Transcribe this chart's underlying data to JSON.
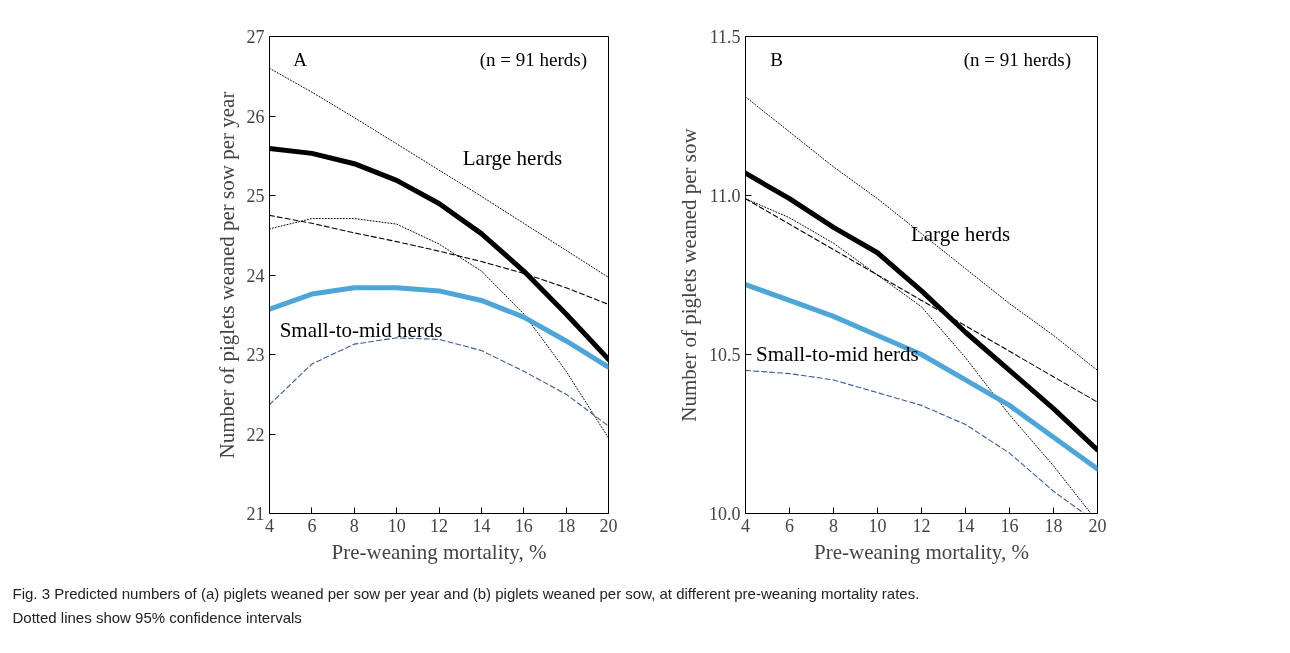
{
  "chart_data": [
    {
      "type": "line",
      "xlabel": "Pre-weaning mortality, %",
      "ylabel": "Number of piglets weaned per sow per year",
      "x": [
        4,
        6,
        8,
        10,
        12,
        14,
        16,
        18,
        20
      ],
      "xlim": [
        4,
        20
      ],
      "ylim": [
        21,
        27
      ],
      "xticks": [
        4,
        6,
        8,
        10,
        12,
        14,
        16,
        18,
        20
      ],
      "yticks": [
        21,
        22,
        23,
        24,
        25,
        26,
        27
      ],
      "annotations": [
        "A",
        "(n = 91 herds)"
      ],
      "series": [
        {
          "name": "Large herds",
          "color": "#000000",
          "line_style": "solid",
          "values": [
            25.59,
            25.53,
            25.4,
            25.19,
            24.9,
            24.52,
            24.05,
            23.51,
            22.94
          ]
        },
        {
          "color": "#000000",
          "line_style": "dotted",
          "values": [
            26.6,
            26.3,
            25.98,
            25.65,
            25.32,
            24.99,
            24.65,
            24.31,
            23.97
          ]
        },
        {
          "color": "#000000",
          "line_style": "dotted",
          "values": [
            24.58,
            24.71,
            24.71,
            24.64,
            24.39,
            24.05,
            23.51,
            22.79,
            21.95
          ]
        },
        {
          "name": "Small-to-mid herds",
          "color": "#4ea6d8",
          "line_style": "solid",
          "values": [
            23.57,
            23.76,
            23.84,
            23.84,
            23.8,
            23.68,
            23.47,
            23.17,
            22.84
          ]
        },
        {
          "color": "#000000",
          "line_style": "dashed",
          "values": [
            24.75,
            24.65,
            24.53,
            24.42,
            24.3,
            24.17,
            24.02,
            23.84,
            23.63
          ]
        },
        {
          "color": "#3b5a9a",
          "line_style": "dashed",
          "values": [
            22.37,
            22.88,
            23.13,
            23.21,
            23.19,
            23.05,
            22.79,
            22.5,
            22.1
          ]
        }
      ]
    },
    {
      "type": "line",
      "xlabel": "Pre-weaning mortality, %",
      "ylabel": "Number of piglets weaned per sow",
      "x": [
        4,
        6,
        8,
        10,
        12,
        14,
        16,
        18,
        20
      ],
      "xlim": [
        4,
        20
      ],
      "ylim": [
        10.0,
        11.5
      ],
      "xticks": [
        4,
        6,
        8,
        10,
        12,
        14,
        16,
        18,
        20
      ],
      "yticks": [
        {
          "value": 10.0,
          "label": "10.0"
        },
        {
          "value": 10.5,
          "label": "10.5"
        },
        {
          "value": 11.0,
          "label": "11.0"
        },
        {
          "value": 11.5,
          "label": "11.5"
        }
      ],
      "annotations": [
        "B",
        "(n = 91 herds)",
        "Fig. 3 Predicted numbers of (a) piglets weaned per sow per year and (b) piglets weaned per sow, at different pre-weaning mortality rates.",
        "Dotted lines show 95% confidence intervals"
      ],
      "series": [
        {
          "name": "Large herds",
          "color": "#000000",
          "line_style": "solid",
          "values": [
            11.07,
            10.99,
            10.9,
            10.82,
            10.7,
            10.57,
            10.45,
            10.33,
            10.2
          ]
        },
        {
          "color": "#000000",
          "line_style": "dotted",
          "values": [
            11.31,
            11.2,
            11.09,
            10.99,
            10.88,
            10.77,
            10.66,
            10.56,
            10.45
          ]
        },
        {
          "color": "#000000",
          "line_style": "dotted",
          "x": [
            4,
            6,
            8,
            10,
            12,
            14,
            16,
            18,
            19.7
          ],
          "values": [
            10.99,
            10.93,
            10.85,
            10.75,
            10.65,
            10.49,
            10.31,
            10.15,
            10.0
          ]
        },
        {
          "name": "Small-to-mid herds",
          "color": "#4ea6d8",
          "line_style": "solid",
          "values": [
            10.72,
            10.67,
            10.62,
            10.56,
            10.5,
            10.42,
            10.34,
            10.24,
            10.14
          ]
        },
        {
          "color": "#000000",
          "line_style": "dashed",
          "values": [
            10.99,
            10.91,
            10.83,
            10.75,
            10.67,
            10.59,
            10.51,
            10.43,
            10.35
          ]
        },
        {
          "color": "#3b5a9a",
          "line_style": "dashed",
          "x": [
            4,
            6,
            8,
            10,
            12,
            14,
            16,
            18,
            19.4
          ],
          "values": [
            10.45,
            10.44,
            10.42,
            10.38,
            10.34,
            10.28,
            10.19,
            10.07,
            10.0
          ]
        }
      ]
    }
  ]
}
